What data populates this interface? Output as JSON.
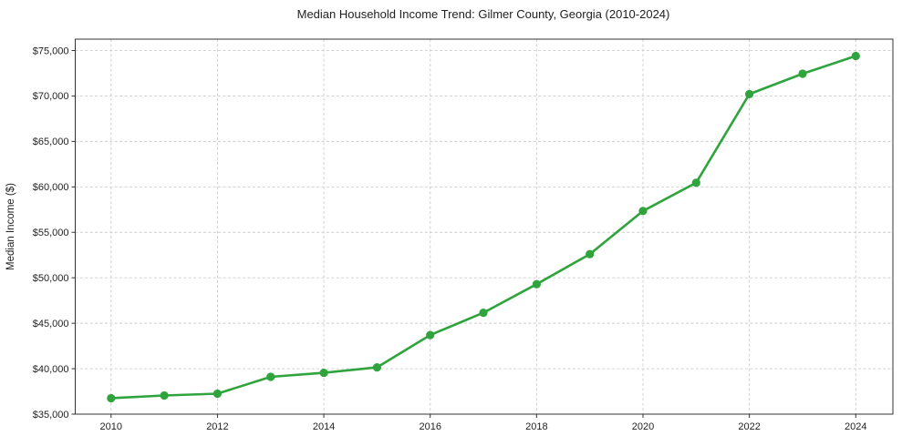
{
  "page": {
    "background_color": "#ffffff"
  },
  "chart_data": {
    "type": "line",
    "title": "Median Household Income Trend: Gilmer County, Georgia (2010-2024)",
    "xlabel": "",
    "ylabel": "Median Income ($)",
    "x": [
      2010,
      2011,
      2012,
      2013,
      2014,
      2015,
      2016,
      2017,
      2018,
      2019,
      2020,
      2021,
      2022,
      2023,
      2024
    ],
    "values": [
      36750,
      37050,
      37250,
      39100,
      39550,
      40150,
      43700,
      46150,
      49300,
      52600,
      57350,
      60450,
      70200,
      72450,
      74400
    ],
    "series_name": "Median Household Income",
    "xticks": [
      2010,
      2012,
      2014,
      2016,
      2018,
      2020,
      2022,
      2024
    ],
    "yticks": [
      35000,
      40000,
      45000,
      50000,
      55000,
      60000,
      65000,
      70000,
      75000
    ],
    "ytick_labels": [
      "$35,000",
      "$40,000",
      "$45,000",
      "$50,000",
      "$55,000",
      "$60,000",
      "$65,000",
      "$70,000",
      "$75,000"
    ],
    "ylim": [
      35000,
      76250
    ],
    "xlim_years": [
      2009.32,
      2024.7
    ],
    "grid": true,
    "grid_style": "dashed",
    "legend_position": "none",
    "line_color": "#2fa43c",
    "marker": "circle",
    "marker_color": "#2fa43c",
    "grid_color": "#cccccc",
    "spine_color": "#333333",
    "text_color": "#1f1f1f",
    "plot_background": "#ffffff"
  }
}
